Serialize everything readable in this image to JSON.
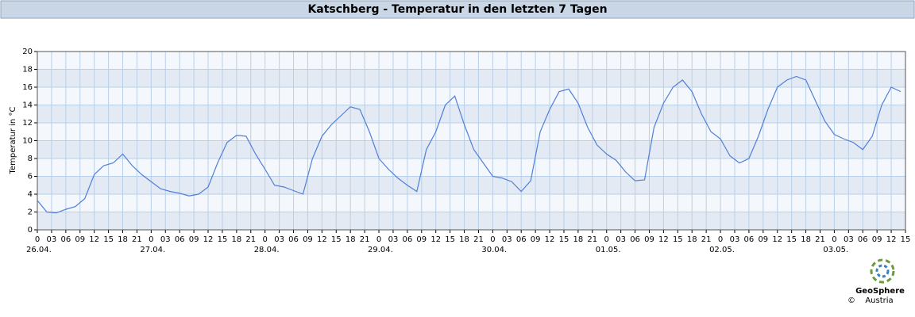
{
  "chart_data": {
    "type": "line",
    "title": "Katschberg - Temperatur in den letzten 7 Tagen",
    "y_label": "Temperatur in °C",
    "x": [
      0,
      2,
      4,
      6,
      8,
      10,
      12,
      14,
      16,
      18,
      20,
      22,
      24,
      26,
      28,
      30,
      32,
      34,
      36,
      38,
      40,
      42,
      44,
      46,
      48,
      50,
      52,
      54,
      56,
      58,
      60,
      62,
      64,
      66,
      68,
      70,
      72,
      74,
      76,
      78,
      80,
      82,
      84,
      86,
      88,
      90,
      92,
      94,
      96,
      98,
      100,
      102,
      104,
      106,
      108,
      110,
      112,
      114,
      116,
      118,
      120,
      122,
      124,
      126,
      128,
      130,
      132,
      134,
      136,
      138,
      140,
      142,
      144,
      146,
      148,
      150,
      152,
      154,
      156,
      158,
      160,
      162,
      164,
      166,
      168,
      170,
      172,
      174,
      176,
      178,
      180,
      182
    ],
    "series": [
      {
        "name": "Temperatur",
        "color": "#4f7fd9",
        "values": [
          3.3,
          2.0,
          1.9,
          2.3,
          2.6,
          3.5,
          6.2,
          7.2,
          7.5,
          8.5,
          7.2,
          6.2,
          5.4,
          4.6,
          4.3,
          4.1,
          3.8,
          4.0,
          4.8,
          7.5,
          9.8,
          10.6,
          10.5,
          8.5,
          6.8,
          5.0,
          4.8,
          4.4,
          4.0,
          8.0,
          10.5,
          11.8,
          12.8,
          13.8,
          13.5,
          11.0,
          8.0,
          6.8,
          5.8,
          5.0,
          4.3,
          9.0,
          11.0,
          14.0,
          15.0,
          11.8,
          9.0,
          7.5,
          6.0,
          5.8,
          5.4,
          4.3,
          5.5,
          11.0,
          13.5,
          15.5,
          15.8,
          14.2,
          11.5,
          9.5,
          8.5,
          7.8,
          6.5,
          5.5,
          5.6,
          11.5,
          14.2,
          16.0,
          16.8,
          15.5,
          13.0,
          11.0,
          10.2,
          8.3,
          7.5,
          8.0,
          10.5,
          13.5,
          16.0,
          16.8,
          17.2,
          16.8,
          14.5,
          12.2,
          10.7,
          10.2,
          9.8,
          9.0,
          10.5,
          14.0,
          16.0,
          15.5
        ]
      }
    ],
    "xlim": [
      0,
      183
    ],
    "xticks": [
      0,
      {
        "value": 3,
        "label": "03"
      },
      {
        "value": 6,
        "label": "06"
      },
      {
        "value": 9,
        "label": "09"
      },
      12,
      15,
      18,
      21,
      {
        "value": 24,
        "label": "0"
      },
      {
        "value": 27,
        "label": "03"
      },
      {
        "value": 30,
        "label": "06"
      },
      {
        "value": 33,
        "label": "09"
      },
      {
        "value": 36,
        "label": "12"
      },
      {
        "value": 39,
        "label": "15"
      },
      {
        "value": 42,
        "label": "18"
      },
      {
        "value": 45,
        "label": "21"
      },
      {
        "value": 48,
        "label": "0"
      },
      {
        "value": 51,
        "label": "03"
      },
      {
        "value": 54,
        "label": "06"
      },
      {
        "value": 57,
        "label": "09"
      },
      {
        "value": 60,
        "label": "12"
      },
      {
        "value": 63,
        "label": "15"
      },
      {
        "value": 66,
        "label": "18"
      },
      {
        "value": 69,
        "label": "21"
      },
      {
        "value": 72,
        "label": "0"
      },
      {
        "value": 75,
        "label": "03"
      },
      {
        "value": 78,
        "label": "06"
      },
      {
        "value": 81,
        "label": "09"
      },
      {
        "value": 84,
        "label": "12"
      },
      {
        "value": 87,
        "label": "15"
      },
      {
        "value": 90,
        "label": "18"
      },
      {
        "value": 93,
        "label": "21"
      },
      {
        "value": 96,
        "label": "0"
      },
      {
        "value": 99,
        "label": "03"
      },
      {
        "value": 102,
        "label": "06"
      },
      {
        "value": 105,
        "label": "09"
      },
      {
        "value": 108,
        "label": "12"
      },
      {
        "value": 111,
        "label": "15"
      },
      {
        "value": 114,
        "label": "18"
      },
      {
        "value": 117,
        "label": "21"
      },
      {
        "value": 120,
        "label": "0"
      },
      {
        "value": 123,
        "label": "03"
      },
      {
        "value": 126,
        "label": "06"
      },
      {
        "value": 129,
        "label": "09"
      },
      {
        "value": 132,
        "label": "12"
      },
      {
        "value": 135,
        "label": "15"
      },
      {
        "value": 138,
        "label": "18"
      },
      {
        "value": 141,
        "label": "21"
      },
      {
        "value": 144,
        "label": "0"
      },
      {
        "value": 147,
        "label": "03"
      },
      {
        "value": 150,
        "label": "06"
      },
      {
        "value": 153,
        "label": "09"
      },
      {
        "value": 156,
        "label": "12"
      },
      {
        "value": 159,
        "label": "15"
      },
      {
        "value": 162,
        "label": "18"
      },
      {
        "value": 165,
        "label": "21"
      },
      {
        "value": 168,
        "label": "0"
      },
      {
        "value": 171,
        "label": "03"
      },
      {
        "value": 174,
        "label": "06"
      },
      {
        "value": 177,
        "label": "09"
      },
      {
        "value": 180,
        "label": "12"
      },
      {
        "value": 183,
        "label": "15"
      }
    ],
    "day_labels": [
      {
        "value": 0,
        "label": "26.04."
      },
      {
        "value": 24,
        "label": "27.04."
      },
      {
        "value": 48,
        "label": "28.04."
      },
      {
        "value": 72,
        "label": "29.04."
      },
      {
        "value": 96,
        "label": "30.04."
      },
      {
        "value": 120,
        "label": "01.05."
      },
      {
        "value": 144,
        "label": "02.05."
      },
      {
        "value": 168,
        "label": "03.05."
      }
    ],
    "ylim": [
      0,
      20
    ],
    "yticks": [
      0,
      2,
      4,
      6,
      8,
      10,
      12,
      14,
      16,
      18,
      20
    ],
    "grid": true,
    "logo": {
      "name": "GeoSphere",
      "sub": "Austria",
      "copyright": "©"
    }
  }
}
